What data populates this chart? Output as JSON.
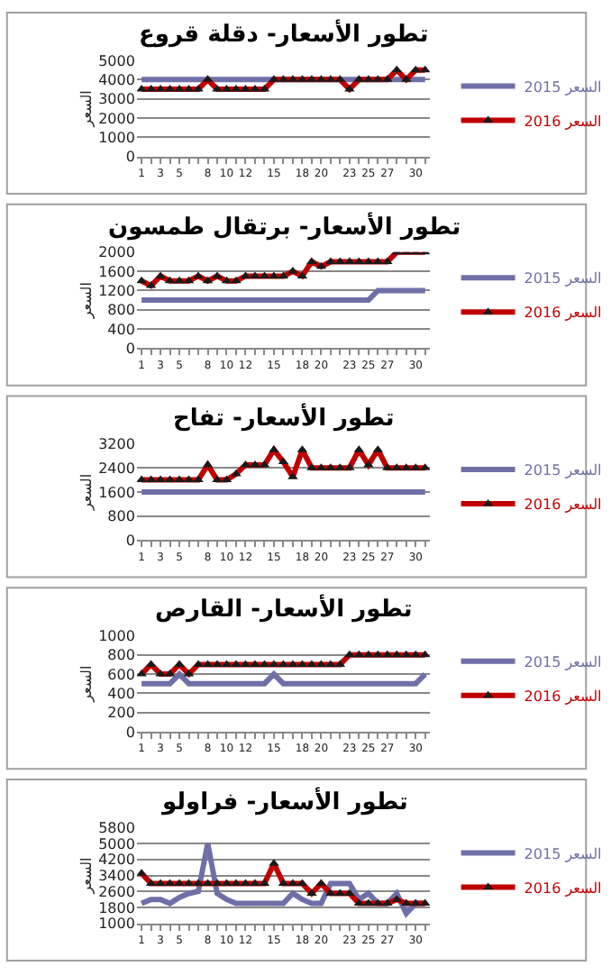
{
  "chart_data": [
    {
      "type": "line",
      "title": "تطور الأسعار- دقلة قروع",
      "ylabel": "السعر",
      "grid": "y",
      "legend": "right",
      "categories": [
        "1",
        null,
        "3",
        null,
        "5",
        null,
        null,
        "8",
        null,
        "10",
        null,
        "12",
        null,
        null,
        "15",
        null,
        null,
        "18",
        null,
        "20",
        null,
        null,
        "23",
        null,
        "25",
        null,
        "27",
        null,
        null,
        "30",
        null
      ],
      "ylim": [
        0,
        5000
      ],
      "yticks": [
        0,
        1000,
        2000,
        3000,
        4000,
        5000
      ],
      "series": [
        {
          "name": "السعر 2015",
          "color": "#6f6fa8",
          "marker": "none",
          "values": [
            4000,
            4000,
            4000,
            4000,
            4000,
            4000,
            4000,
            4000,
            4000,
            4000,
            4000,
            4000,
            4000,
            4000,
            4000,
            4000,
            4000,
            4000,
            4000,
            4000,
            4000,
            4000,
            4000,
            4000,
            4000,
            4000,
            4000,
            4000,
            4000,
            4000,
            4000
          ]
        },
        {
          "name": "السعر 2016",
          "color": "#c00000",
          "marker": "triangle",
          "values": [
            3500,
            3500,
            3500,
            3500,
            3500,
            3500,
            3500,
            4000,
            3500,
            3500,
            3500,
            3500,
            3500,
            3500,
            4000,
            4000,
            4000,
            4000,
            4000,
            4000,
            4000,
            4000,
            3500,
            4000,
            4000,
            4000,
            4000,
            4500,
            4000,
            4500,
            4500
          ]
        }
      ]
    },
    {
      "type": "line",
      "title": "تطور الأسعار- برتقال طمسون",
      "ylabel": "السعر",
      "grid": "y",
      "legend": "right",
      "categories": [
        "1",
        null,
        "3",
        null,
        "5",
        null,
        null,
        "8",
        null,
        "10",
        null,
        "12",
        null,
        null,
        "15",
        null,
        null,
        "18",
        null,
        "20",
        null,
        null,
        "23",
        null,
        "25",
        null,
        "27",
        null,
        null,
        "30",
        null
      ],
      "ylim": [
        0,
        2000
      ],
      "yticks": [
        0,
        400,
        800,
        1200,
        1600,
        2000
      ],
      "series": [
        {
          "name": "السعر 2015",
          "color": "#6f6fa8",
          "marker": "none",
          "values": [
            1000,
            1000,
            1000,
            1000,
            1000,
            1000,
            1000,
            1000,
            1000,
            1000,
            1000,
            1000,
            1000,
            1000,
            1000,
            1000,
            1000,
            1000,
            1000,
            1000,
            1000,
            1000,
            1000,
            1000,
            1000,
            1200,
            1200,
            1200,
            1200,
            1200,
            1200
          ]
        },
        {
          "name": "السعر 2016",
          "color": "#c00000",
          "marker": "triangle",
          "values": [
            1400,
            1300,
            1500,
            1400,
            1400,
            1400,
            1500,
            1400,
            1500,
            1400,
            1400,
            1500,
            1500,
            1500,
            1500,
            1500,
            1600,
            1500,
            1800,
            1700,
            1800,
            1800,
            1800,
            1800,
            1800,
            1800,
            1800,
            2000,
            2000,
            2000,
            2000
          ]
        }
      ]
    },
    {
      "type": "line",
      "title": "تطور الأسعار- تفاح",
      "ylabel": "السعر",
      "grid": "y",
      "legend": "right",
      "categories": [
        "1",
        null,
        "3",
        null,
        "5",
        null,
        null,
        "8",
        null,
        "10",
        null,
        "12",
        null,
        null,
        "15",
        null,
        null,
        "18",
        null,
        "20",
        null,
        null,
        "23",
        null,
        "25",
        null,
        "27",
        null,
        null,
        "30",
        null
      ],
      "ylim": [
        0,
        3200
      ],
      "yticks": [
        0,
        800,
        1600,
        2400,
        3200
      ],
      "series": [
        {
          "name": "السعر 2015",
          "color": "#6f6fa8",
          "marker": "none",
          "values": [
            1600,
            1600,
            1600,
            1600,
            1600,
            1600,
            1600,
            1600,
            1600,
            1600,
            1600,
            1600,
            1600,
            1600,
            1600,
            1600,
            1600,
            1600,
            1600,
            1600,
            1600,
            1600,
            1600,
            1600,
            1600,
            1600,
            1600,
            1600,
            1600,
            1600,
            1600
          ]
        },
        {
          "name": "السعر 2016",
          "color": "#c00000",
          "marker": "triangle",
          "values": [
            2000,
            2000,
            2000,
            2000,
            2000,
            2000,
            2000,
            2500,
            2000,
            2000,
            2200,
            2500,
            2500,
            2500,
            3000,
            2600,
            2100,
            3000,
            2400,
            2400,
            2400,
            2400,
            2400,
            3000,
            2500,
            3000,
            2400,
            2400,
            2400,
            2400,
            2400
          ]
        }
      ]
    },
    {
      "type": "line",
      "title": "تطور الأسعار- القارص",
      "ylabel": "السعر",
      "grid": "y",
      "legend": "right",
      "categories": [
        "1",
        null,
        "3",
        null,
        "5",
        null,
        null,
        "8",
        null,
        "10",
        null,
        "12",
        null,
        null,
        "15",
        null,
        null,
        "18",
        null,
        "20",
        null,
        null,
        "23",
        null,
        "25",
        null,
        "27",
        null,
        null,
        "30",
        null
      ],
      "ylim": [
        0,
        1000
      ],
      "yticks": [
        0,
        200,
        400,
        600,
        800,
        1000
      ],
      "series": [
        {
          "name": "السعر 2015",
          "color": "#6f6fa8",
          "marker": "none",
          "values": [
            500,
            500,
            500,
            500,
            600,
            500,
            500,
            500,
            500,
            500,
            500,
            500,
            500,
            500,
            600,
            500,
            500,
            500,
            500,
            500,
            500,
            500,
            500,
            500,
            500,
            500,
            500,
            500,
            500,
            500,
            600
          ]
        },
        {
          "name": "السعر 2016",
          "color": "#c00000",
          "marker": "triangle",
          "values": [
            600,
            700,
            600,
            600,
            700,
            600,
            700,
            700,
            700,
            700,
            700,
            700,
            700,
            700,
            700,
            700,
            700,
            700,
            700,
            700,
            700,
            700,
            800,
            800,
            800,
            800,
            800,
            800,
            800,
            800,
            800
          ]
        }
      ]
    },
    {
      "type": "line",
      "title": "تطور الأسعار- فراولو",
      "ylabel": "السعر",
      "grid": "y",
      "legend": "right",
      "categories": [
        "1",
        null,
        "3",
        null,
        "5",
        null,
        null,
        "8",
        null,
        "10",
        null,
        "12",
        null,
        null,
        "15",
        null,
        null,
        "18",
        null,
        "20",
        null,
        null,
        "23",
        null,
        "25",
        null,
        "27",
        null,
        null,
        "30",
        null
      ],
      "ylim": [
        1000,
        5800
      ],
      "yticks": [
        1000,
        1800,
        2600,
        3400,
        4200,
        5000,
        5800
      ],
      "series": [
        {
          "name": "السعر 2015",
          "color": "#6f6fa8",
          "marker": "none",
          "values": [
            2000,
            2200,
            2200,
            2000,
            2300,
            2500,
            2600,
            5000,
            2500,
            2200,
            2000,
            2000,
            2000,
            2000,
            2000,
            2000,
            2500,
            2200,
            2000,
            2000,
            3000,
            3000,
            3000,
            2200,
            2500,
            2000,
            2000,
            2500,
            1500,
            2000,
            2000
          ]
        },
        {
          "name": "السعر 2016",
          "color": "#c00000",
          "marker": "triangle",
          "values": [
            3500,
            3000,
            3000,
            3000,
            3000,
            3000,
            3000,
            3000,
            3000,
            3000,
            3000,
            3000,
            3000,
            3000,
            4000,
            3000,
            3000,
            3000,
            2500,
            3000,
            2500,
            2500,
            2500,
            2000,
            2000,
            2000,
            2000,
            2200,
            2000,
            2000,
            2000
          ]
        }
      ]
    }
  ]
}
